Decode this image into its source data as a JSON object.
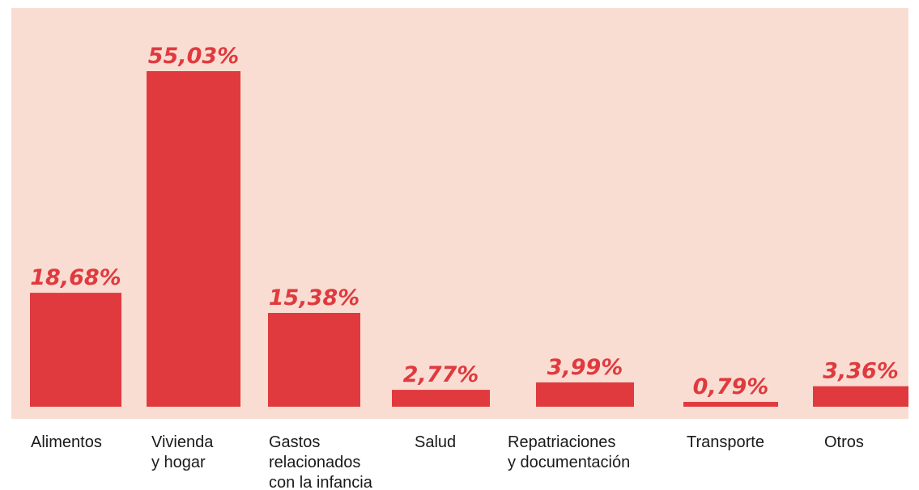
{
  "chart_data": {
    "type": "bar",
    "categories": [
      [
        "Alimentos"
      ],
      [
        "Vivienda",
        "y hogar"
      ],
      [
        "Gastos",
        "relacionados",
        "con la infancia"
      ],
      [
        "Salud"
      ],
      [
        "Repatriaciones",
        "y documentación"
      ],
      [
        "Transporte"
      ],
      [
        "Otros"
      ]
    ],
    "values": [
      18.68,
      55.03,
      15.38,
      2.77,
      3.99,
      0.79,
      3.36
    ],
    "value_labels": [
      "18,68%",
      "55,03%",
      "15,38%",
      "2,77%",
      "3,99%",
      "0,79%",
      "3,36%"
    ],
    "unit": "%",
    "title": "",
    "xlabel": "",
    "ylabel": "",
    "ylim": [
      0,
      55.03
    ],
    "grid": false,
    "legend": "none"
  },
  "colors": {
    "plot_background": "#f9ddd3",
    "bar": "#e03a3e",
    "value_label": "#e03a3e",
    "category_label": "#1a1a1a",
    "page_background": "#ffffff"
  }
}
